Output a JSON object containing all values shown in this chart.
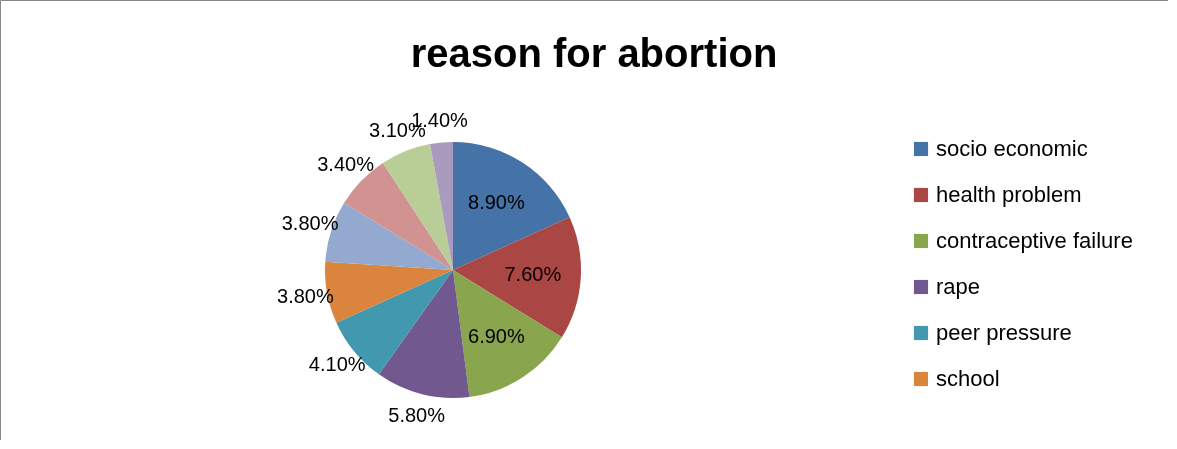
{
  "chart_data": {
    "type": "pie",
    "title": "reason for abortion",
    "categories": [
      "socio economic",
      "health problem",
      "contraceptive failure",
      "rape",
      "peer pressure",
      "school",
      null,
      null,
      null,
      null
    ],
    "values": [
      8.9,
      7.6,
      6.9,
      5.8,
      4.1,
      3.8,
      3.8,
      3.4,
      3.1,
      1.4
    ],
    "value_labels": [
      "8.90%",
      "7.60%",
      "6.90%",
      "5.80%",
      "4.10%",
      "3.80%",
      "3.80%",
      "3.40%",
      "3.10%",
      "1.40%"
    ],
    "colors": [
      "#4572a7",
      "#aa4643",
      "#89a54e",
      "#71588f",
      "#4198af",
      "#db843d",
      "#93a9cf",
      "#d19392",
      "#b9cd96",
      "#a99bbd"
    ],
    "legend": "right"
  }
}
